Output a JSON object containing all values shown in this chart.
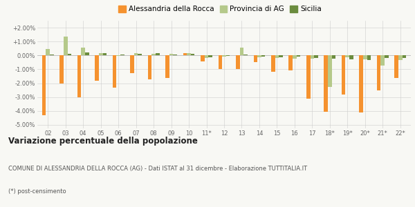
{
  "years": [
    "02",
    "03",
    "04",
    "05",
    "06",
    "07",
    "08",
    "09",
    "10",
    "11*",
    "12",
    "13",
    "14",
    "15",
    "16",
    "17",
    "18*",
    "19*",
    "20*",
    "21*",
    "22*"
  ],
  "alessandria": [
    -4.3,
    -2.0,
    -3.0,
    -1.8,
    -2.3,
    -1.3,
    -1.7,
    -1.6,
    0.15,
    -0.45,
    -1.0,
    -1.0,
    -0.5,
    -1.2,
    -1.1,
    -3.1,
    -4.05,
    -2.8,
    -4.1,
    -2.5,
    -1.6
  ],
  "provincia": [
    0.45,
    1.35,
    0.55,
    0.15,
    -0.05,
    0.15,
    0.1,
    0.1,
    0.15,
    -0.2,
    -0.1,
    0.55,
    -0.15,
    -0.2,
    -0.25,
    -0.25,
    -2.25,
    -0.15,
    -0.3,
    -0.75,
    -0.35
  ],
  "sicilia": [
    0.05,
    0.1,
    0.2,
    0.15,
    0.05,
    0.1,
    0.15,
    0.05,
    0.1,
    -0.15,
    -0.05,
    0.05,
    -0.1,
    -0.15,
    -0.1,
    -0.2,
    -0.25,
    -0.3,
    -0.35,
    -0.2,
    -0.2
  ],
  "color_alessandria": "#f5922f",
  "color_provincia": "#b5c98a",
  "color_sicilia": "#6b8c3e",
  "bg_color": "#f8f8f4",
  "ylim": [
    -5.25,
    2.5
  ],
  "yticks": [
    -5.0,
    -4.0,
    -3.0,
    -2.0,
    -1.0,
    0.0,
    1.0,
    2.0
  ],
  "title": "Variazione percentuale della popolazione",
  "subtitle": "COMUNE DI ALESSANDRIA DELLA ROCCA (AG) - Dati ISTAT al 31 dicembre - Elaborazione TUTTITALIA.IT",
  "footnote": "(*) post-censimento",
  "legend_labels": [
    "Alessandria della Rocca",
    "Provincia di AG",
    "Sicilia"
  ]
}
